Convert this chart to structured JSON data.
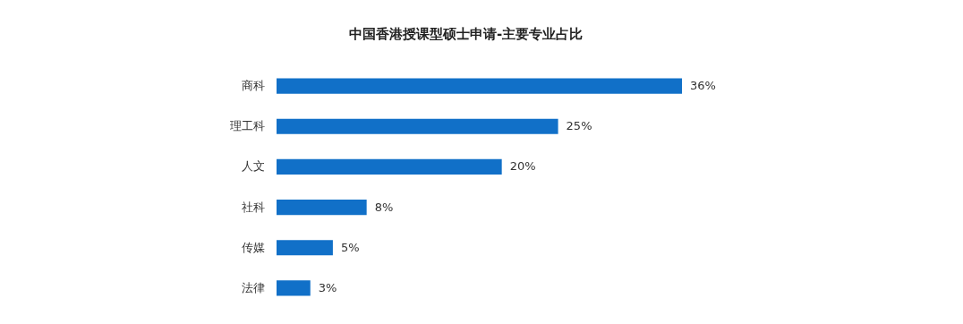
{
  "chart_data": {
    "type": "bar",
    "orientation": "horizontal",
    "title": "中国香港授课型硕士申请-主要专业占比",
    "categories": [
      "商科",
      "理工科",
      "人文",
      "社科",
      "传媒",
      "法律"
    ],
    "values": [
      36,
      25,
      20,
      8,
      5,
      3
    ],
    "value_labels": [
      "36%",
      "25%",
      "20%",
      "8%",
      "5%",
      "3%"
    ],
    "color": "#1170c8"
  }
}
